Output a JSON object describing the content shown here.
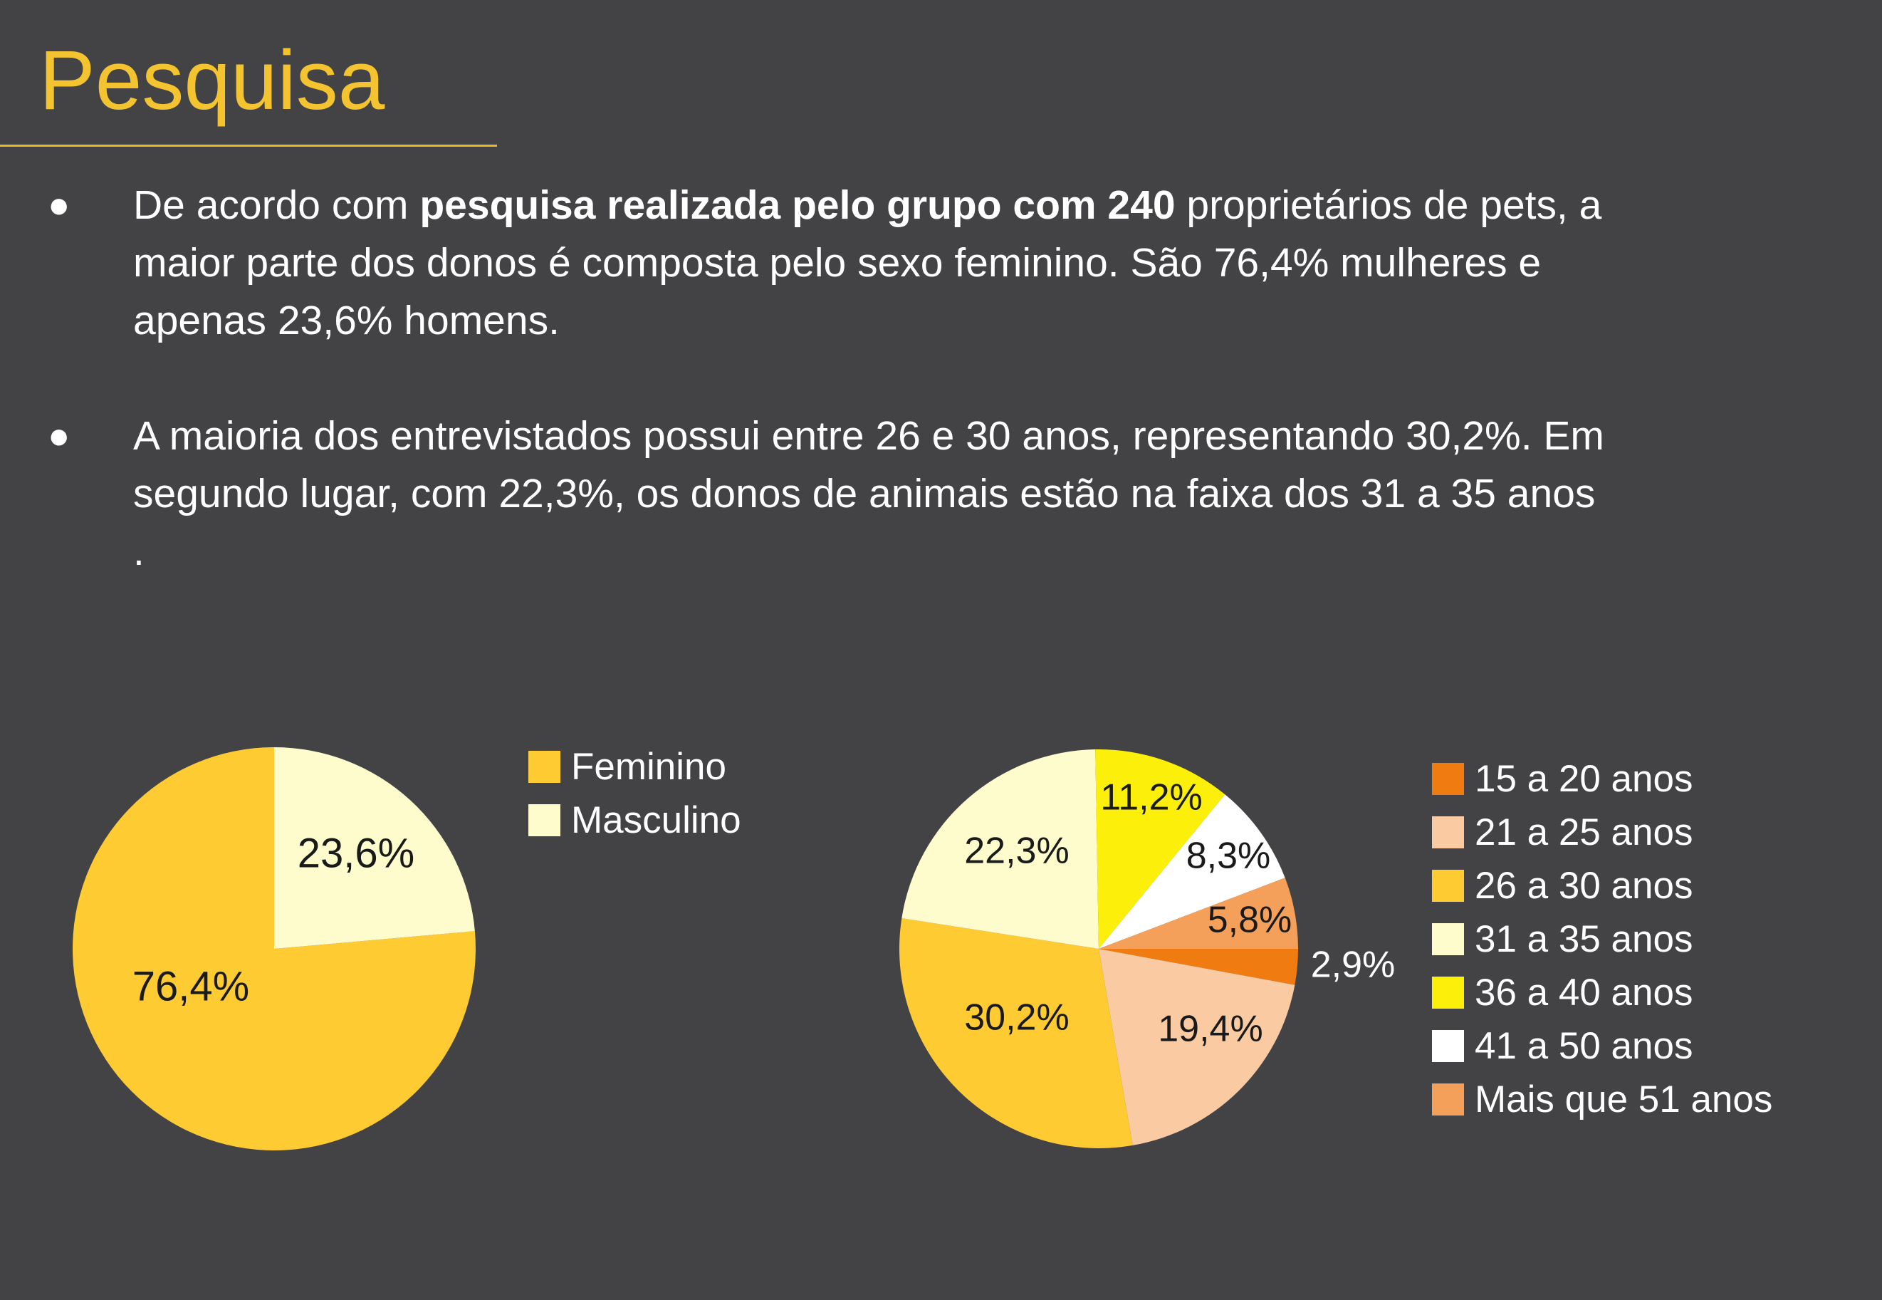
{
  "header": {
    "title": "Pesquisa"
  },
  "bullets": [
    {
      "pre": "De acordo com ",
      "bold": "pesquisa realizada pelo grupo com 240",
      "post": " proprietários de pets, a maior parte dos donos é composta pelo  sexo feminino. São 76,4% mulheres e apenas 23,6% homens."
    },
    {
      "text": "A maioria dos entrevistados possui entre 26 e 30 anos, representando 30,2%. Em segundo lugar, com 22,3%, os donos de animais estão na faixa dos 31 a 35 anos ."
    }
  ],
  "colors": {
    "background": "#434244",
    "title": "#f4c430",
    "text": "#ffffff",
    "label": "#1a1a1a"
  },
  "chart_data": [
    {
      "type": "pie",
      "categories": [
        "Feminino",
        "Masculino"
      ],
      "values": [
        76.4,
        23.6
      ],
      "labels": [
        "76,4%",
        "23,6%"
      ],
      "colors": [
        "#fecb33",
        "#fefbcd"
      ],
      "legend_position": "right"
    },
    {
      "type": "pie",
      "categories": [
        "15 a 20 anos",
        "21 a 25 anos",
        "26 a 30 anos",
        "31 a 35 anos",
        "36 a 40 anos",
        "41 a 50 anos",
        "Mais que 51 anos"
      ],
      "values": [
        2.9,
        19.4,
        30.2,
        22.3,
        11.2,
        8.3,
        5.8
      ],
      "labels": [
        "2,9%",
        "19,4%",
        "30,2%",
        "22,3%",
        "11,2%",
        "8,3%",
        "5,8%"
      ],
      "colors": [
        "#f07b10",
        "#facba3",
        "#fecb33",
        "#fefbcd",
        "#fcf00a",
        "#ffffff",
        "#f5a05a"
      ],
      "legend_position": "right"
    }
  ]
}
